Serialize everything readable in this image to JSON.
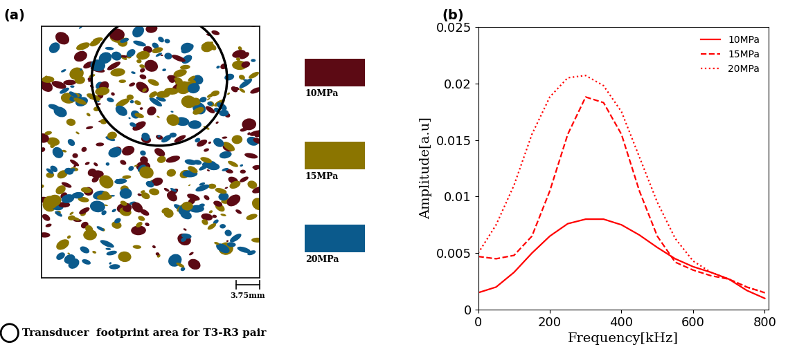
{
  "panel_a": {
    "label": "(a)",
    "legend": [
      {
        "name": "10MPa",
        "color": "#5c0a14"
      },
      {
        "name": "15MPa",
        "color": "#8b7500"
      },
      {
        "name": "20MPa",
        "color": "#0b5a8c"
      }
    ],
    "scale_bar": "3.75mm",
    "caption": "Transducer  footprint area for T3-R3 pair"
  },
  "chart_data": {
    "type": "line",
    "label": "(b)",
    "x_label": "Frequency[kHz]",
    "y_label": "Amplitude[a.u]",
    "x": [
      0,
      50,
      100,
      150,
      200,
      250,
      300,
      350,
      400,
      450,
      500,
      550,
      600,
      650,
      700,
      750,
      800
    ],
    "series": [
      {
        "name": "10MPa",
        "color": "#ff0000",
        "line_style": "solid",
        "values": [
          0.0015,
          0.002,
          0.0033,
          0.005,
          0.0065,
          0.0076,
          0.008,
          0.008,
          0.0075,
          0.0066,
          0.0055,
          0.0045,
          0.0038,
          0.0033,
          0.0027,
          0.0017,
          0.001
        ]
      },
      {
        "name": "15MPa",
        "color": "#ff0000",
        "line_style": "dashed",
        "values": [
          0.0047,
          0.0045,
          0.0048,
          0.0065,
          0.0105,
          0.0155,
          0.0188,
          0.0183,
          0.0155,
          0.0105,
          0.0065,
          0.0042,
          0.0035,
          0.003,
          0.0027,
          0.002,
          0.0015
        ]
      },
      {
        "name": "20MPa",
        "color": "#ff0000",
        "line_style": "dotted",
        "values": [
          0.005,
          0.0075,
          0.011,
          0.0155,
          0.0188,
          0.0205,
          0.0207,
          0.0198,
          0.0175,
          0.0135,
          0.0095,
          0.0063,
          0.0043,
          0.0033,
          0.0027,
          0.002,
          0.0015
        ]
      }
    ],
    "xlim": [
      0,
      810
    ],
    "xticks": [
      0,
      200,
      400,
      600,
      800
    ],
    "ylim": [
      0,
      0.025
    ],
    "yticks": [
      0,
      0.005,
      0.01,
      0.015,
      0.02,
      0.025
    ],
    "legend": "upper right",
    "grid": false
  }
}
